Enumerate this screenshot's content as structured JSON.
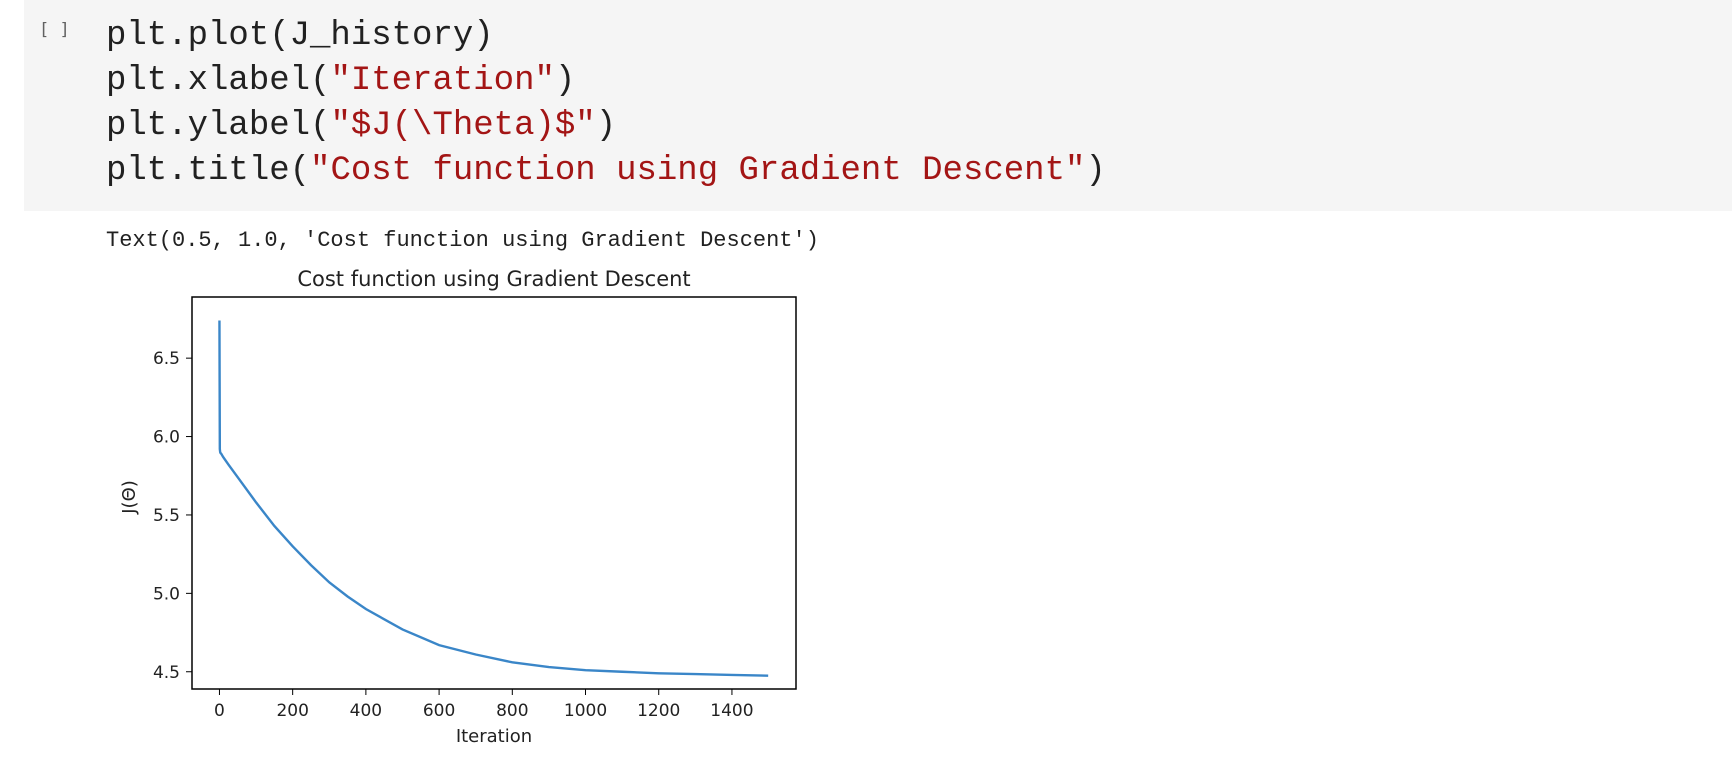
{
  "cell": {
    "execution_count": "[ ]",
    "code_lines": [
      {
        "parts": [
          {
            "text": "plt.plot(J_history)",
            "kind": "plain"
          }
        ]
      },
      {
        "parts": [
          {
            "text": "plt.xlabel(",
            "kind": "plain"
          },
          {
            "text": "\"Iteration\"",
            "kind": "str"
          },
          {
            "text": ")",
            "kind": "plain"
          }
        ]
      },
      {
        "parts": [
          {
            "text": "plt.ylabel(",
            "kind": "plain"
          },
          {
            "text": "\"$J(\\Theta)$\"",
            "kind": "str"
          },
          {
            "text": ")",
            "kind": "plain"
          }
        ]
      },
      {
        "parts": [
          {
            "text": "plt.title(",
            "kind": "plain"
          },
          {
            "text": "\"Cost function using Gradient Descent\"",
            "kind": "str"
          },
          {
            "text": ")",
            "kind": "plain"
          }
        ]
      }
    ]
  },
  "output": {
    "text": "Text(0.5, 1.0, 'Cost function using Gradient Descent')"
  },
  "colors": {
    "cell_background": "#f5f5f5",
    "string_literal": "#a31515",
    "line": "#3a86c8"
  },
  "chart_data": {
    "type": "line",
    "title": "Cost function using Gradient Descent",
    "xlabel": "Iteration",
    "ylabel": "J(Θ)",
    "xlim": [
      -75,
      1575
    ],
    "ylim": [
      4.39,
      6.89
    ],
    "xticks": [
      0,
      200,
      400,
      600,
      800,
      1000,
      1200,
      1400
    ],
    "xtick_labels": [
      "0",
      "200",
      "400",
      "600",
      "800",
      "1000",
      "1200",
      "1400"
    ],
    "yticks": [
      4.5,
      5.0,
      5.5,
      6.0,
      6.5
    ],
    "ytick_labels": [
      "4.5",
      "5.0",
      "5.5",
      "6.0",
      "6.5"
    ],
    "grid": false,
    "series": [
      {
        "x": [
          0,
          1,
          2,
          3,
          5,
          10,
          25,
          50,
          100,
          150,
          200,
          250,
          300,
          350,
          400,
          500,
          600,
          700,
          800,
          900,
          1000,
          1100,
          1200,
          1300,
          1400,
          1499
        ],
        "y": [
          6.74,
          5.92,
          5.9,
          5.895,
          5.89,
          5.87,
          5.82,
          5.74,
          5.58,
          5.43,
          5.3,
          5.18,
          5.07,
          4.98,
          4.9,
          4.77,
          4.67,
          4.61,
          4.56,
          4.53,
          4.51,
          4.5,
          4.49,
          4.485,
          4.48,
          4.475
        ]
      }
    ]
  }
}
